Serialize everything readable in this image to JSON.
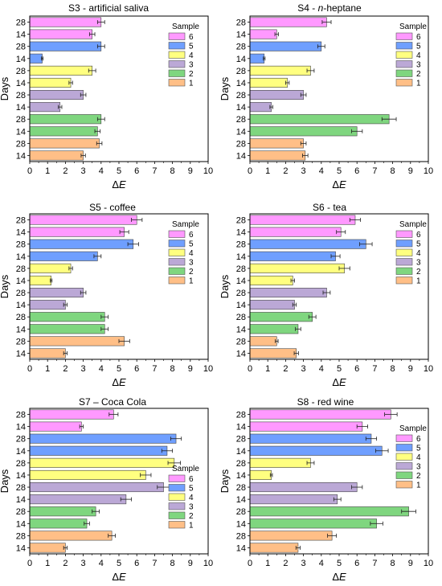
{
  "colors": {
    "6": "#ff99ff",
    "5": "#6f9fff",
    "4": "#ffff80",
    "3": "#bba8d6",
    "2": "#7fd67f",
    "1": "#ffbf87"
  },
  "days_row_labels": [
    "28",
    "14",
    "28",
    "14",
    "28",
    "14",
    "28",
    "14",
    "28",
    "14",
    "28",
    "14"
  ],
  "row_samples": [
    "6",
    "6",
    "5",
    "5",
    "4",
    "4",
    "3",
    "3",
    "2",
    "2",
    "1",
    "1"
  ],
  "legend": {
    "title": "Sample",
    "items": [
      "6",
      "5",
      "4",
      "3",
      "2",
      "1"
    ]
  },
  "axis": {
    "ylabel": "Days",
    "xlabel": "ΔE",
    "xticks": [
      "0",
      "1",
      "2",
      "3",
      "4",
      "5",
      "6",
      "7",
      "8",
      "9",
      "10"
    ]
  },
  "chart_data": [
    {
      "type": "bar",
      "orientation": "horizontal",
      "title": "S3 - artificial saliva",
      "xlim": [
        0,
        10
      ],
      "categories": [
        "28",
        "14",
        "28",
        "14",
        "28",
        "14",
        "28",
        "14",
        "28",
        "14",
        "28",
        "14"
      ],
      "values": [
        4.0,
        3.5,
        4.0,
        0.7,
        3.5,
        2.3,
        3.0,
        1.7,
        4.0,
        3.8,
        3.9,
        3.0
      ],
      "errors": [
        0.2,
        0.15,
        0.2,
        0.05,
        0.2,
        0.1,
        0.15,
        0.1,
        0.2,
        0.15,
        0.15,
        0.12
      ]
    },
    {
      "type": "bar",
      "orientation": "horizontal",
      "title": "S4 - n-heptane",
      "xlim": [
        0,
        10
      ],
      "categories": [
        "28",
        "14",
        "28",
        "14",
        "28",
        "14",
        "28",
        "14",
        "28",
        "14",
        "28",
        "14"
      ],
      "values": [
        4.3,
        1.5,
        4.0,
        0.8,
        3.4,
        2.1,
        3.0,
        1.2,
        7.8,
        6.0,
        3.0,
        3.1
      ],
      "errors": [
        0.25,
        0.1,
        0.2,
        0.05,
        0.2,
        0.1,
        0.15,
        0.08,
        0.4,
        0.3,
        0.15,
        0.15
      ]
    },
    {
      "type": "bar",
      "orientation": "horizontal",
      "title": "S5 - coffee",
      "xlim": [
        0,
        10
      ],
      "categories": [
        "28",
        "14",
        "28",
        "14",
        "28",
        "14",
        "28",
        "14",
        "28",
        "14",
        "28",
        "14"
      ],
      "values": [
        6.0,
        5.3,
        5.8,
        3.8,
        2.3,
        1.2,
        3.0,
        2.0,
        4.2,
        4.2,
        5.3,
        2.0
      ],
      "errors": [
        0.3,
        0.25,
        0.3,
        0.2,
        0.1,
        0.05,
        0.15,
        0.1,
        0.2,
        0.2,
        0.3,
        0.1
      ]
    },
    {
      "type": "bar",
      "orientation": "horizontal",
      "title": "S6 - tea",
      "xlim": [
        0,
        10
      ],
      "categories": [
        "28",
        "14",
        "28",
        "14",
        "28",
        "14",
        "28",
        "14",
        "28",
        "14",
        "28",
        "14"
      ],
      "values": [
        5.9,
        5.1,
        6.5,
        4.8,
        5.3,
        2.4,
        4.3,
        2.5,
        3.5,
        2.7,
        1.5,
        2.6
      ],
      "errors": [
        0.3,
        0.25,
        0.35,
        0.25,
        0.3,
        0.1,
        0.2,
        0.1,
        0.2,
        0.15,
        0.08,
        0.12
      ]
    },
    {
      "type": "bar",
      "orientation": "horizontal",
      "title": "S7 – Coca Cola",
      "xlim": [
        0,
        10
      ],
      "categories": [
        "28",
        "14",
        "28",
        "14",
        "28",
        "14",
        "28",
        "14",
        "28",
        "14",
        "28",
        "14"
      ],
      "values": [
        4.7,
        2.9,
        8.2,
        7.7,
        8.1,
        6.5,
        7.5,
        5.4,
        3.7,
        3.2,
        4.6,
        2.0
      ],
      "errors": [
        0.25,
        0.1,
        0.3,
        0.3,
        0.35,
        0.3,
        0.35,
        0.3,
        0.2,
        0.15,
        0.2,
        0.1
      ]
    },
    {
      "type": "bar",
      "orientation": "horizontal",
      "title": "S8 - red wine",
      "xlim": [
        0,
        10
      ],
      "categories": [
        "28",
        "14",
        "28",
        "14",
        "28",
        "14",
        "28",
        "14",
        "28",
        "14",
        "28",
        "14"
      ],
      "values": [
        7.9,
        6.3,
        6.8,
        7.4,
        3.4,
        1.2,
        6.0,
        4.9,
        8.9,
        7.1,
        4.6,
        2.7
      ],
      "errors": [
        0.35,
        0.3,
        0.3,
        0.35,
        0.2,
        0.06,
        0.3,
        0.2,
        0.4,
        0.35,
        0.25,
        0.12
      ]
    }
  ]
}
